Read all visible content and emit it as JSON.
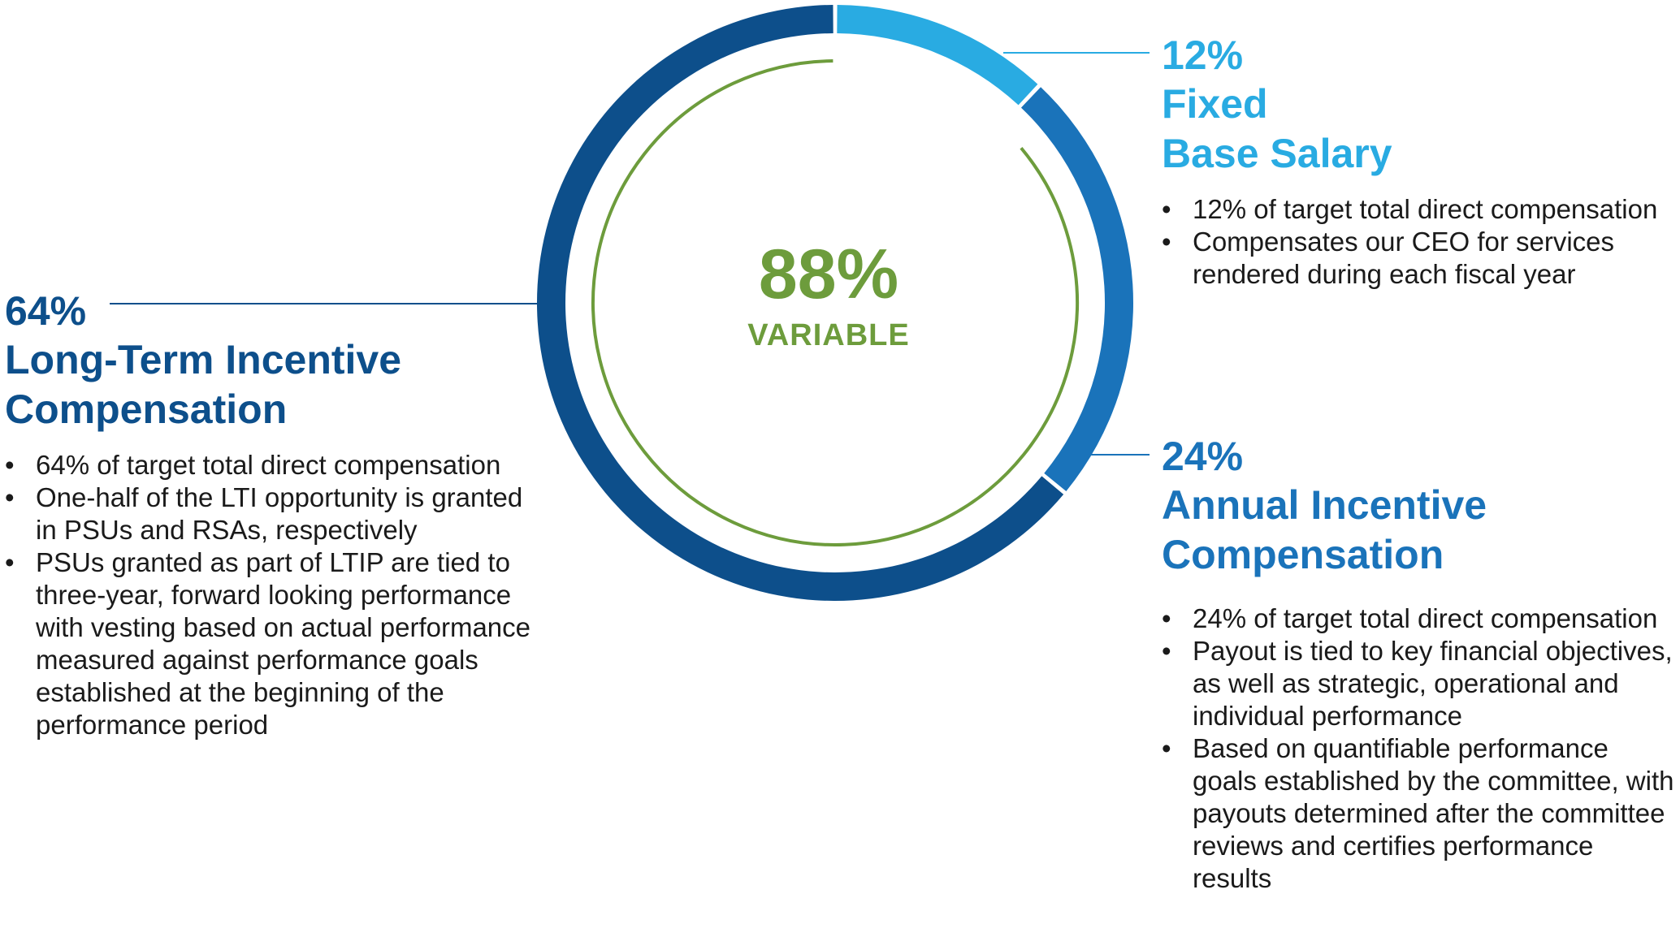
{
  "chart_data": {
    "type": "pie",
    "variant": "donut",
    "title": "",
    "center": {
      "value": "88%",
      "label": "VARIABLE"
    },
    "inner_arc": {
      "label": "VARIABLE",
      "percent": 88
    },
    "slices": [
      {
        "name": "Fixed Base Salary",
        "value": 12,
        "color": "#29abe2"
      },
      {
        "name": "Annual Incentive Compensation",
        "value": 24,
        "color": "#1a73ba"
      },
      {
        "name": "Long-Term Incentive Compensation",
        "value": 64,
        "color": "#0d4f8b"
      }
    ]
  },
  "colors": {
    "base_salary": "#29abe2",
    "annual_incentive": "#1a73ba",
    "long_term_incentive": "#0d4f8b",
    "variable": "#6d9c3c"
  },
  "base_salary": {
    "percent": "12%",
    "title_line1": "Fixed",
    "title_line2": "Base Salary",
    "bullets": [
      "12% of target total direct compensation",
      "Compensates our CEO for services rendered during each fiscal year"
    ]
  },
  "annual_incentive": {
    "percent": "24%",
    "title_line1": "Annual Incentive",
    "title_line2": "Compensation",
    "bullets": [
      "24% of target total direct compensation",
      "Payout is tied to key financial objectives, as well as strategic, operational and individual performance",
      "Based on quantifiable performance goals established by the committee, with payouts determined after the committee reviews and certifies performance results"
    ]
  },
  "long_term_incentive": {
    "percent": "64%",
    "title_line1": "Long-Term Incentive",
    "title_line2": "Compensation",
    "bullets": [
      "64% of target total direct compensation",
      "One-half of the LTI opportunity is granted in PSUs and RSAs, respectively",
      "PSUs granted as part of LTIP are tied to three-year, forward looking performance with vesting based on actual performance measured against performance goals established at the beginning of the performance period"
    ]
  }
}
